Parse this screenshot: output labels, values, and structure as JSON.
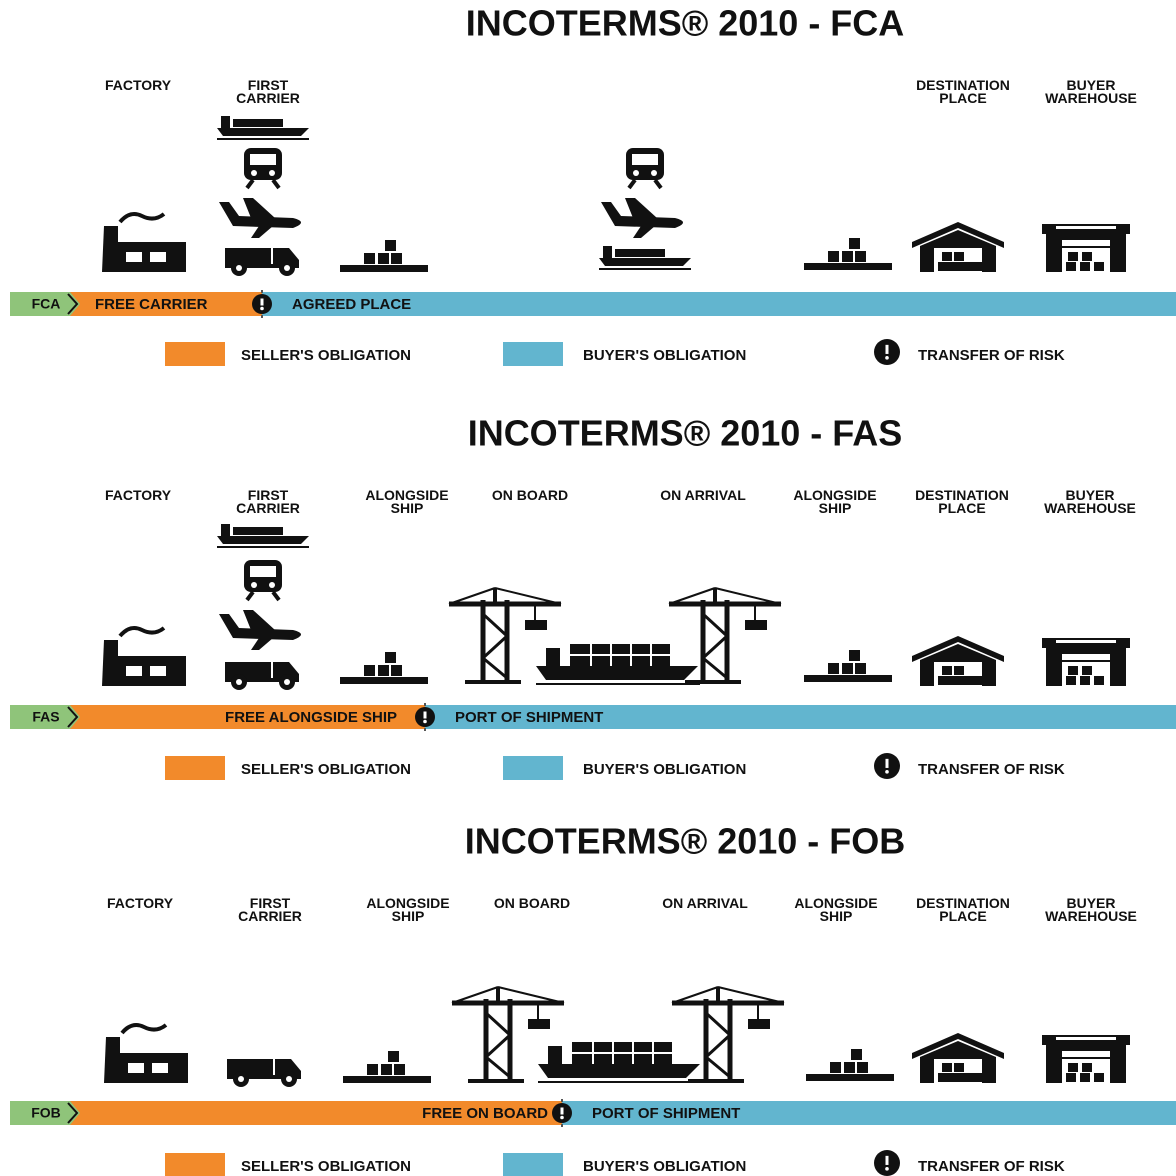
{
  "sections": [
    {
      "title": "INCOTERMS® 2010 - FCA",
      "locations": [
        {
          "lines": [
            "FACTORY"
          ]
        },
        {
          "lines": [
            "FIRST",
            "CARRIER"
          ]
        },
        {
          "lines": [
            "DESTINATION",
            "PLACE"
          ]
        },
        {
          "lines": [
            "BUYER",
            "WAREHOUSE"
          ]
        }
      ],
      "bar": {
        "code": "FCA",
        "seller": "FREE CARRIER",
        "buyer": "AGREED PLACE"
      },
      "legend": {
        "seller": "SELLER'S OBLIGATION",
        "buyer": "BUYER'S OBLIGATION",
        "risk": "TRANSFER OF RISK"
      }
    },
    {
      "title": "INCOTERMS® 2010 - FAS",
      "locations": [
        {
          "lines": [
            "FACTORY"
          ]
        },
        {
          "lines": [
            "FIRST",
            "CARRIER"
          ]
        },
        {
          "lines": [
            "ALONGSIDE",
            "SHIP"
          ]
        },
        {
          "lines": [
            "ON BOARD"
          ]
        },
        {
          "lines": [
            "ON ARRIVAL"
          ]
        },
        {
          "lines": [
            "ALONGSIDE",
            "SHIP"
          ]
        },
        {
          "lines": [
            "DESTINATION",
            "PLACE"
          ]
        },
        {
          "lines": [
            "BUYER",
            "WAREHOUSE"
          ]
        }
      ],
      "bar": {
        "code": "FAS",
        "seller": "FREE ALONGSIDE SHIP",
        "buyer": "PORT OF SHIPMENT"
      },
      "legend": {
        "seller": "SELLER'S OBLIGATION",
        "buyer": "BUYER'S OBLIGATION",
        "risk": "TRANSFER OF RISK"
      }
    },
    {
      "title": "INCOTERMS® 2010 - FOB",
      "locations": [
        {
          "lines": [
            "FACTORY"
          ]
        },
        {
          "lines": [
            "FIRST",
            "CARRIER"
          ]
        },
        {
          "lines": [
            "ALONGSIDE",
            "SHIP"
          ]
        },
        {
          "lines": [
            "ON BOARD"
          ]
        },
        {
          "lines": [
            "ON ARRIVAL"
          ]
        },
        {
          "lines": [
            "ALONGSIDE",
            "SHIP"
          ]
        },
        {
          "lines": [
            "DESTINATION",
            "PLACE"
          ]
        },
        {
          "lines": [
            "BUYER",
            "WAREHOUSE"
          ]
        }
      ],
      "bar": {
        "code": "FOB",
        "seller": "FREE ON BOARD",
        "buyer": "PORT OF SHIPMENT"
      },
      "legend": {
        "seller": "SELLER'S OBLIGATION",
        "buyer": "BUYER'S OBLIGATION",
        "risk": "TRANSFER OF RISK"
      }
    }
  ]
}
